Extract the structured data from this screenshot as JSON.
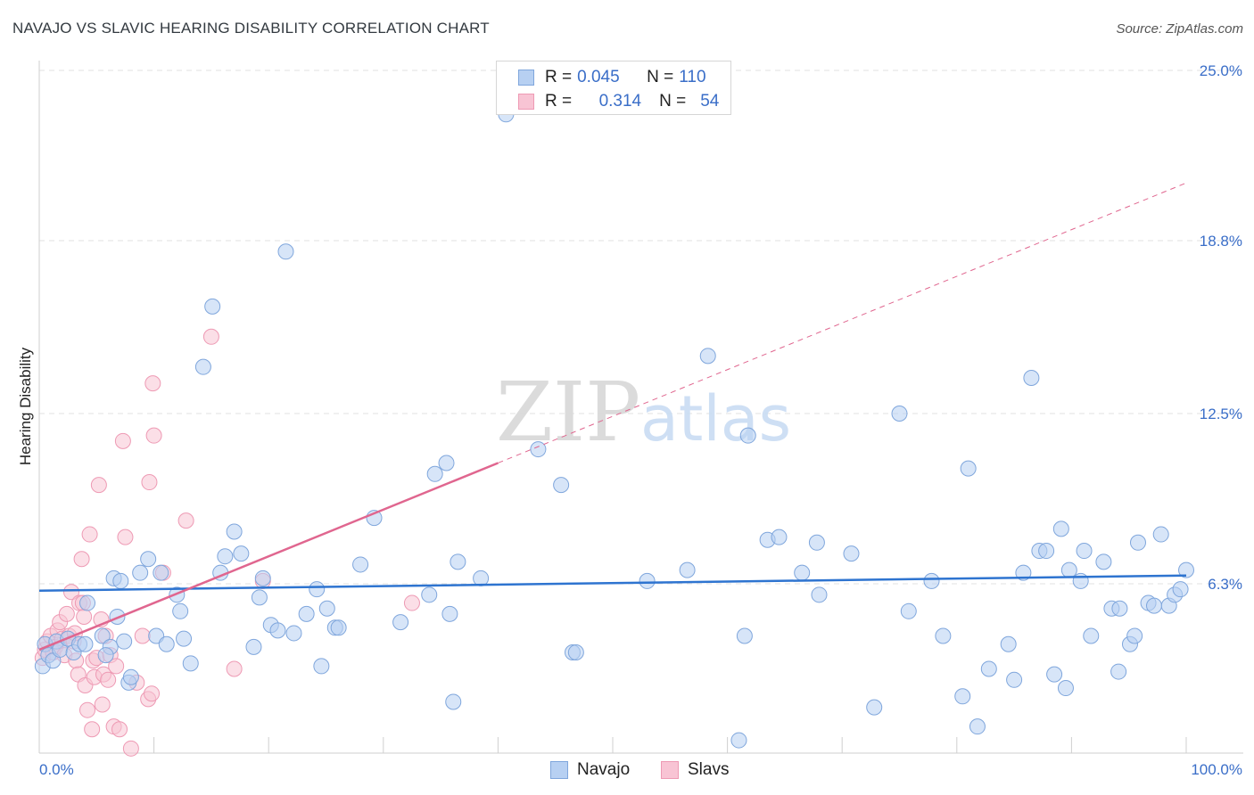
{
  "title": "NAVAJO VS SLAVIC HEARING DISABILITY CORRELATION CHART",
  "source": "Source: ZipAtlas.com",
  "watermark": {
    "zip": "ZIP",
    "atlas": "atlas"
  },
  "legend": {
    "navajo": {
      "r_label": "R =",
      "r_value": "0.045",
      "n_label": "N =",
      "n_value": "110"
    },
    "slavs": {
      "r_label": "R =",
      "r_value": "0.314",
      "n_label": "N =",
      "n_value": "54"
    }
  },
  "colors": {
    "navajo_fill": "#b7d0f2",
    "navajo_stroke": "#7fa6dc",
    "navajo_line": "#2e74d0",
    "slavs_fill": "#f8c4d4",
    "slavs_stroke": "#ee9ab4",
    "slavs_line": "#e0668f",
    "axis_label": "#3a6ec8",
    "grid": "#e2e2e2"
  },
  "chart_data": {
    "type": "scatter",
    "title": "NAVAJO VS SLAVIC HEARING DISABILITY CORRELATION CHART",
    "xlabel": "",
    "ylabel": "Hearing Disability",
    "xlim": [
      0,
      100
    ],
    "ylim": [
      0,
      26
    ],
    "x_tick_labels": [
      "0.0%",
      "100.0%"
    ],
    "y_ticks": [
      6.3,
      12.5,
      18.8,
      25.0
    ],
    "y_tick_labels": [
      "6.3%",
      "12.5%",
      "18.8%",
      "25.0%"
    ],
    "grid": true,
    "legend_position": "bottom-center",
    "series": [
      {
        "name": "Navajo",
        "r": 0.045,
        "n": 110,
        "trend": {
          "x": [
            0,
            100
          ],
          "y": [
            6.05,
            6.6
          ]
        },
        "points": [
          [
            0.3,
            3.3
          ],
          [
            0.5,
            4.1
          ],
          [
            0.8,
            3.7
          ],
          [
            1.2,
            3.5
          ],
          [
            1.5,
            4.2
          ],
          [
            1.8,
            3.9
          ],
          [
            2.5,
            4.3
          ],
          [
            3.0,
            3.8
          ],
          [
            3.5,
            4.1
          ],
          [
            4.2,
            5.6
          ],
          [
            4.0,
            4.1
          ],
          [
            5.5,
            4.4
          ],
          [
            6.2,
            4.0
          ],
          [
            5.8,
            3.7
          ],
          [
            6.5,
            6.5
          ],
          [
            6.8,
            5.1
          ],
          [
            7.1,
            6.4
          ],
          [
            7.4,
            4.2
          ],
          [
            7.8,
            2.7
          ],
          [
            8.0,
            2.9
          ],
          [
            8.8,
            6.7
          ],
          [
            9.5,
            7.2
          ],
          [
            10.2,
            4.4
          ],
          [
            10.6,
            6.7
          ],
          [
            11.1,
            4.1
          ],
          [
            12.0,
            5.9
          ],
          [
            12.3,
            5.3
          ],
          [
            12.6,
            4.3
          ],
          [
            13.2,
            3.4
          ],
          [
            14.3,
            14.2
          ],
          [
            15.1,
            16.4
          ],
          [
            15.8,
            6.7
          ],
          [
            16.2,
            7.3
          ],
          [
            17.0,
            8.2
          ],
          [
            17.6,
            7.4
          ],
          [
            18.7,
            4.0
          ],
          [
            19.2,
            5.8
          ],
          [
            19.5,
            6.5
          ],
          [
            20.2,
            4.8
          ],
          [
            20.8,
            4.6
          ],
          [
            21.5,
            18.4
          ],
          [
            22.2,
            4.5
          ],
          [
            23.3,
            5.2
          ],
          [
            24.2,
            6.1
          ],
          [
            24.6,
            3.3
          ],
          [
            25.1,
            5.4
          ],
          [
            25.8,
            4.7
          ],
          [
            26.1,
            4.7
          ],
          [
            28.0,
            7.0
          ],
          [
            29.2,
            8.7
          ],
          [
            31.5,
            4.9
          ],
          [
            34.0,
            5.9
          ],
          [
            34.5,
            10.3
          ],
          [
            35.5,
            10.7
          ],
          [
            35.8,
            5.2
          ],
          [
            36.1,
            2.0
          ],
          [
            36.5,
            7.1
          ],
          [
            38.5,
            6.5
          ],
          [
            40.7,
            23.4
          ],
          [
            43.5,
            11.2
          ],
          [
            45.5,
            9.9
          ],
          [
            46.5,
            3.8
          ],
          [
            46.8,
            3.8
          ],
          [
            53.0,
            6.4
          ],
          [
            56.5,
            6.8
          ],
          [
            58.3,
            14.6
          ],
          [
            61.0,
            0.6
          ],
          [
            61.5,
            4.4
          ],
          [
            61.8,
            11.7
          ],
          [
            63.5,
            7.9
          ],
          [
            64.5,
            8.0
          ],
          [
            66.5,
            6.7
          ],
          [
            67.8,
            7.8
          ],
          [
            68.0,
            5.9
          ],
          [
            70.8,
            7.4
          ],
          [
            72.8,
            1.8
          ],
          [
            75.0,
            12.5
          ],
          [
            75.8,
            5.3
          ],
          [
            77.8,
            6.4
          ],
          [
            78.8,
            4.4
          ],
          [
            80.5,
            2.2
          ],
          [
            81.0,
            10.5
          ],
          [
            81.8,
            1.1
          ],
          [
            82.8,
            3.2
          ],
          [
            84.5,
            4.1
          ],
          [
            85.0,
            2.8
          ],
          [
            85.8,
            6.7
          ],
          [
            86.5,
            13.8
          ],
          [
            87.2,
            7.5
          ],
          [
            87.8,
            7.5
          ],
          [
            88.5,
            3.0
          ],
          [
            89.1,
            8.3
          ],
          [
            89.5,
            2.5
          ],
          [
            89.8,
            6.8
          ],
          [
            90.8,
            6.4
          ],
          [
            91.1,
            7.5
          ],
          [
            91.7,
            4.4
          ],
          [
            92.8,
            7.1
          ],
          [
            93.5,
            5.4
          ],
          [
            94.1,
            3.1
          ],
          [
            94.2,
            5.4
          ],
          [
            95.1,
            4.1
          ],
          [
            95.5,
            4.4
          ],
          [
            95.8,
            7.8
          ],
          [
            96.7,
            5.6
          ],
          [
            97.2,
            5.5
          ],
          [
            97.8,
            8.1
          ],
          [
            98.5,
            5.5
          ],
          [
            99.0,
            5.9
          ],
          [
            99.5,
            6.1
          ],
          [
            100.0,
            6.8
          ]
        ]
      },
      {
        "name": "Slavs",
        "r": 0.314,
        "n": 54,
        "trend": {
          "x": [
            0,
            40
          ],
          "y": [
            3.9,
            10.7
          ],
          "dashed_extension": {
            "x": [
              40,
              100
            ],
            "y": [
              10.7,
              20.9
            ]
          }
        },
        "points": [
          [
            0.3,
            3.6
          ],
          [
            0.5,
            3.9
          ],
          [
            0.7,
            4.2
          ],
          [
            1.0,
            4.4
          ],
          [
            1.2,
            3.8
          ],
          [
            1.4,
            4.0
          ],
          [
            1.6,
            4.6
          ],
          [
            1.8,
            4.9
          ],
          [
            2.0,
            4.3
          ],
          [
            2.2,
            3.7
          ],
          [
            2.4,
            5.2
          ],
          [
            2.6,
            4.4
          ],
          [
            2.8,
            6.0
          ],
          [
            3.0,
            4.2
          ],
          [
            3.1,
            4.5
          ],
          [
            3.2,
            3.5
          ],
          [
            3.4,
            3.0
          ],
          [
            3.5,
            5.6
          ],
          [
            3.7,
            7.2
          ],
          [
            3.8,
            5.6
          ],
          [
            3.9,
            5.1
          ],
          [
            4.0,
            2.6
          ],
          [
            4.2,
            1.7
          ],
          [
            4.4,
            8.1
          ],
          [
            4.6,
            1.0
          ],
          [
            4.7,
            3.5
          ],
          [
            4.8,
            2.9
          ],
          [
            5.0,
            3.6
          ],
          [
            5.2,
            9.9
          ],
          [
            5.4,
            5.0
          ],
          [
            5.5,
            1.9
          ],
          [
            5.6,
            3.0
          ],
          [
            5.8,
            4.4
          ],
          [
            6.0,
            2.8
          ],
          [
            6.2,
            3.7
          ],
          [
            6.5,
            1.1
          ],
          [
            6.7,
            3.3
          ],
          [
            7.0,
            1.0
          ],
          [
            7.3,
            11.5
          ],
          [
            7.5,
            8.0
          ],
          [
            8.0,
            0.3
          ],
          [
            8.5,
            2.7
          ],
          [
            9.0,
            4.4
          ],
          [
            9.5,
            2.1
          ],
          [
            9.8,
            2.3
          ],
          [
            9.9,
            13.6
          ],
          [
            10.0,
            11.7
          ],
          [
            10.8,
            6.7
          ],
          [
            12.8,
            8.6
          ],
          [
            15.0,
            15.3
          ],
          [
            17.0,
            3.2
          ],
          [
            19.5,
            6.4
          ],
          [
            32.5,
            5.6
          ],
          [
            9.6,
            10.0
          ]
        ]
      }
    ]
  }
}
